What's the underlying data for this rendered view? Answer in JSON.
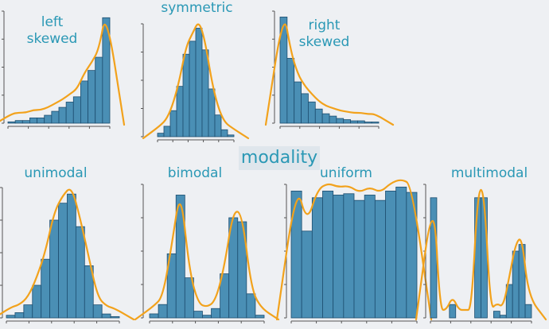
{
  "section_title": "modality",
  "colors": {
    "bar": "#4a8fb5",
    "bar_edge": "#1d4e70",
    "outline": "#f2a21c",
    "text": "#2a98b5",
    "axis": "#555555"
  },
  "chart_data": [
    {
      "type": "bar",
      "name": "left-skewed",
      "label": "left\nskewed",
      "values": [
        1,
        2,
        2,
        4,
        4,
        6,
        9,
        12,
        16,
        20,
        32,
        40,
        50,
        80
      ],
      "ylim": [
        0,
        85
      ],
      "outline": true
    },
    {
      "type": "bar",
      "name": "symmetric",
      "label": "symmetric",
      "values": [
        4,
        12,
        30,
        58,
        95,
        110,
        125,
        100,
        55,
        25,
        8,
        2
      ],
      "ylim": [
        0,
        130
      ],
      "outline": true
    },
    {
      "type": "bar",
      "name": "right-skewed",
      "label": "right\nskewed",
      "values": [
        90,
        55,
        35,
        25,
        18,
        12,
        8,
        6,
        4,
        3,
        2,
        2,
        1,
        1
      ],
      "ylim": [
        0,
        95
      ],
      "outline": true
    },
    {
      "type": "bar",
      "name": "unimodal",
      "label": "unimodal",
      "values": [
        2,
        4,
        10,
        25,
        45,
        75,
        88,
        95,
        70,
        40,
        10,
        3,
        1
      ],
      "ylim": [
        0,
        100
      ],
      "outline": true
    },
    {
      "type": "bar",
      "name": "bimodal",
      "label": "bimodal",
      "values": [
        3,
        10,
        48,
        92,
        30,
        5,
        2,
        7,
        33,
        75,
        72,
        18,
        2
      ],
      "ylim": [
        0,
        100
      ],
      "outline": true
    },
    {
      "type": "bar",
      "name": "uniform",
      "label": "uniform",
      "values": [
        95,
        65,
        90,
        95,
        92,
        93,
        88,
        92,
        88,
        95,
        98,
        94
      ],
      "ylim": [
        0,
        100
      ],
      "outline": true
    },
    {
      "type": "bar",
      "name": "multimodal",
      "label": "multimodal",
      "values": [
        90,
        0,
        0,
        10,
        0,
        0,
        0,
        90,
        90,
        0,
        5,
        2,
        25,
        50,
        55,
        10
      ],
      "ylim": [
        0,
        100
      ],
      "outline": true
    }
  ]
}
